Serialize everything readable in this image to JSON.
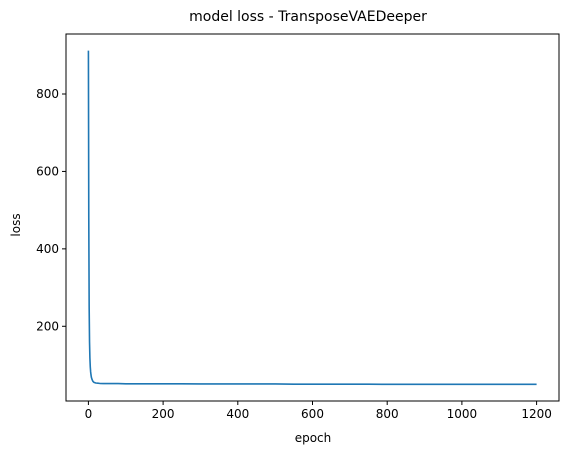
{
  "chart_data": {
    "type": "line",
    "title": "model loss - TransposeVAEDeeper",
    "xlabel": "epoch",
    "ylabel": "loss",
    "xlim": [
      -60,
      1260
    ],
    "ylim": [
      7,
      955
    ],
    "xticks": [
      0,
      200,
      400,
      600,
      800,
      1000,
      1200
    ],
    "yticks": [
      200,
      400,
      600,
      800
    ],
    "grid": false,
    "legend": false,
    "series": [
      {
        "color": "#1f77b4",
        "x": [
          0,
          1,
          2,
          3,
          4,
          5,
          6,
          7,
          8,
          10,
          12,
          15,
          18,
          20,
          25,
          30,
          40,
          50,
          60,
          80,
          100,
          150,
          200,
          250,
          300,
          350,
          400,
          450,
          500,
          550,
          600,
          650,
          700,
          750,
          800,
          850,
          900,
          950,
          1000,
          1050,
          1100,
          1150,
          1200
        ],
        "y": [
          912,
          480,
          250,
          160,
          118,
          95,
          82,
          74,
          68,
          62,
          58,
          55,
          54,
          53.5,
          53,
          52.5,
          52,
          52,
          52,
          52,
          51.5,
          51.5,
          51.5,
          51.5,
          51,
          51,
          51,
          51,
          51,
          50.5,
          50.5,
          50.5,
          50.5,
          50.5,
          50,
          50,
          50,
          50,
          50,
          50,
          50,
          50,
          50
        ]
      }
    ]
  }
}
